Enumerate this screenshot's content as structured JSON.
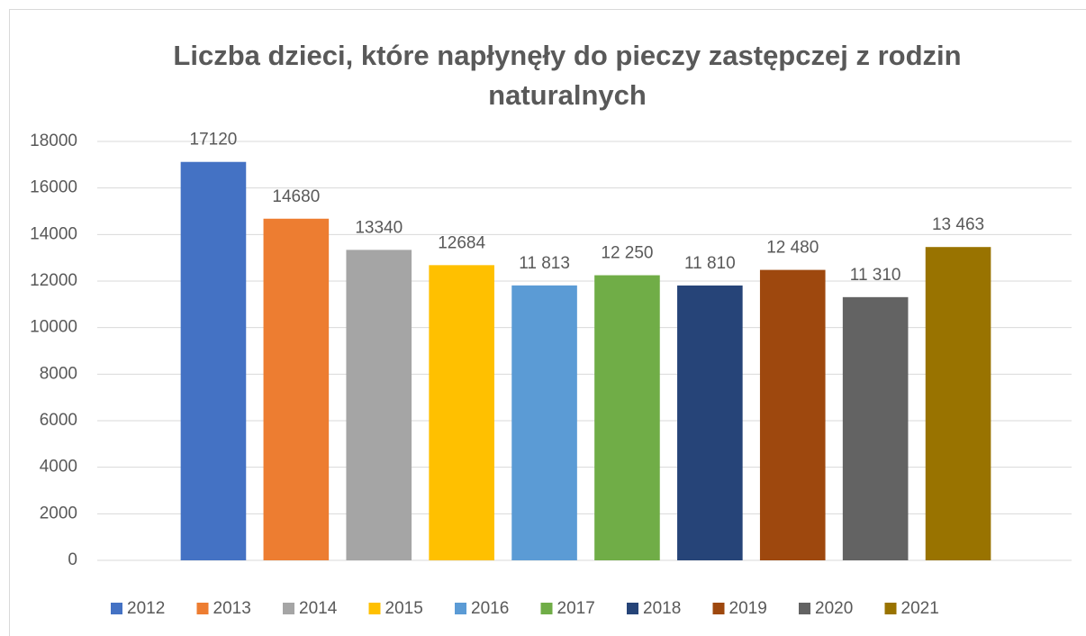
{
  "chart_data": {
    "type": "bar",
    "title": "Liczba dzieci, które napłynęły do pieczy zastępczej z rodzin naturalnych",
    "categories": [
      null
    ],
    "series": [
      {
        "name": "2012",
        "color": "#4472c4",
        "values": [
          17120
        ]
      },
      {
        "name": "2013",
        "color": "#ed7d31",
        "values": [
          14680
        ]
      },
      {
        "name": "2014",
        "color": "#a5a5a5",
        "values": [
          13340
        ]
      },
      {
        "name": "2015",
        "color": "#ffc000",
        "values": [
          12684
        ]
      },
      {
        "name": "2016",
        "color": "#5b9bd5",
        "values": [
          11813
        ],
        "value_labels": [
          "11 813"
        ]
      },
      {
        "name": "2017",
        "color": "#70ad47",
        "values": [
          12250
        ],
        "value_labels": [
          "12 250"
        ]
      },
      {
        "name": "2018",
        "color": "#264478",
        "values": [
          11810
        ],
        "value_labels": [
          "11 810"
        ]
      },
      {
        "name": "2019",
        "color": "#9e480e",
        "values": [
          12480
        ],
        "value_labels": [
          "12 480"
        ]
      },
      {
        "name": "2020",
        "color": "#636363",
        "values": [
          11310
        ],
        "value_labels": [
          "11 310"
        ]
      },
      {
        "name": "2021",
        "color": "#997300",
        "values": [
          13463
        ],
        "value_labels": [
          "13 463"
        ]
      }
    ],
    "ylim": [
      0,
      18000
    ],
    "yticks": [
      0,
      2000,
      4000,
      6000,
      8000,
      10000,
      12000,
      14000,
      16000,
      18000
    ],
    "grid": true,
    "legend": "bottom"
  }
}
